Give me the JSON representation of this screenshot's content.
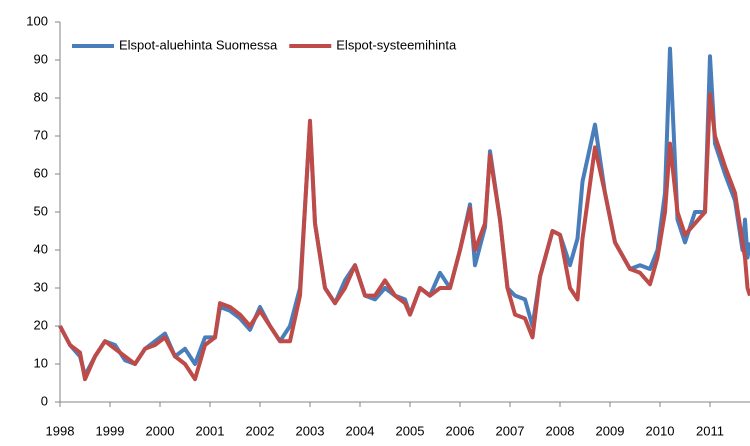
{
  "chart_data": {
    "type": "line",
    "x": [
      1998.0,
      1998.2,
      1998.4,
      1998.5,
      1998.7,
      1998.9,
      1999.1,
      1999.3,
      1999.5,
      1999.7,
      1999.9,
      2000.1,
      2000.3,
      2000.5,
      2000.7,
      2000.9,
      2001.1,
      2001.2,
      2001.4,
      2001.6,
      2001.8,
      2002.0,
      2002.2,
      2002.4,
      2002.6,
      2002.8,
      2003.0,
      2003.1,
      2003.3,
      2003.5,
      2003.7,
      2003.9,
      2004.1,
      2004.3,
      2004.5,
      2004.7,
      2004.9,
      2005.0,
      2005.2,
      2005.4,
      2005.6,
      2005.8,
      2006.0,
      2006.2,
      2006.3,
      2006.5,
      2006.6,
      2006.8,
      2006.95,
      2007.1,
      2007.3,
      2007.45,
      2007.6,
      2007.85,
      2008.0,
      2008.2,
      2008.35,
      2008.45,
      2008.7,
      2008.9,
      2009.1,
      2009.4,
      2009.6,
      2009.8,
      2009.95,
      2010.1,
      2010.2,
      2010.35,
      2010.5,
      2010.7,
      2010.9,
      2011.0,
      2011.1,
      2011.3,
      2011.5,
      2011.65,
      2011.7,
      2011.75,
      2011.8
    ],
    "series": [
      {
        "name": "Elspot-aluehinta Suomessa",
        "color": "#4a7ebb",
        "values": [
          20,
          15,
          12,
          7,
          12,
          16,
          15,
          11,
          10,
          14,
          16,
          18,
          12,
          14,
          10,
          17,
          17,
          25,
          24,
          22,
          19,
          25,
          20,
          16,
          20,
          30,
          73,
          47,
          30,
          26,
          32,
          36,
          28,
          27,
          30,
          28,
          27,
          23,
          30,
          28,
          34,
          30,
          40,
          52,
          36,
          46,
          66,
          48,
          30,
          28,
          27,
          20,
          33,
          45,
          44,
          36,
          43,
          58,
          73,
          55,
          42,
          35,
          36,
          35,
          40,
          55,
          93,
          48,
          42,
          50,
          50,
          91,
          68,
          60,
          53,
          40,
          48,
          38,
          42
        ]
      },
      {
        "name": "Elspot-systeemihinta",
        "color": "#be4b48",
        "values": [
          20,
          15,
          13,
          6,
          12,
          16,
          14,
          12,
          10,
          14,
          15,
          17,
          12,
          10,
          6,
          15,
          17,
          26,
          25,
          23,
          20,
          24,
          20,
          16,
          16,
          28,
          74,
          47,
          30,
          26,
          30,
          36,
          28,
          28,
          32,
          28,
          26,
          23,
          30,
          28,
          30,
          30,
          40,
          51,
          40,
          47,
          65,
          48,
          30,
          23,
          22,
          17,
          33,
          45,
          44,
          30,
          27,
          43,
          67,
          55,
          42,
          35,
          34,
          31,
          38,
          50,
          68,
          50,
          44,
          47,
          50,
          81,
          70,
          62,
          55,
          42,
          38,
          30,
          28
        ]
      }
    ],
    "xlim": [
      1998,
      2011.8
    ],
    "xticks": [
      1998,
      1999,
      2000,
      2001,
      2002,
      2003,
      2004,
      2005,
      2006,
      2007,
      2008,
      2009,
      2010,
      2011
    ],
    "ylim": [
      0,
      100
    ],
    "yticks": [
      0,
      10,
      20,
      30,
      40,
      50,
      60,
      70,
      80,
      90,
      100
    ],
    "legend": "upper-left"
  }
}
